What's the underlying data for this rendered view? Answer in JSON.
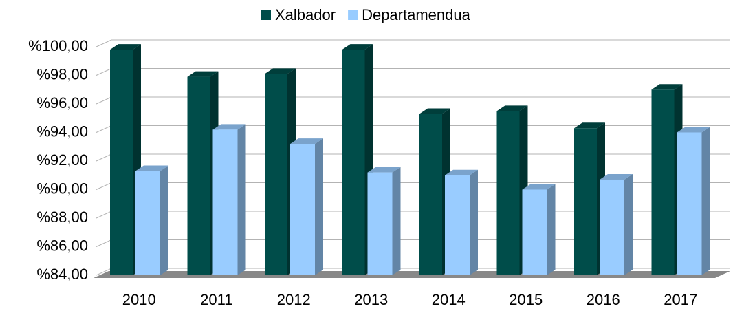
{
  "chart_data": {
    "type": "bar3d",
    "categories": [
      "2010",
      "2011",
      "2012",
      "2013",
      "2014",
      "2015",
      "2016",
      "2017"
    ],
    "series": [
      {
        "name": "Xalbador",
        "color": "#004d4a",
        "values": [
          99.8,
          97.9,
          98.1,
          99.8,
          95.3,
          95.5,
          94.3,
          97.0
        ]
      },
      {
        "name": "Departamendua",
        "color": "#99ccff",
        "values": [
          91.3,
          94.2,
          93.2,
          91.2,
          91.0,
          90.0,
          90.7,
          94.0
        ]
      }
    ],
    "ylim": [
      84,
      100
    ],
    "yticks": [
      {
        "value": 84,
        "label": "%84,00"
      },
      {
        "value": 86,
        "label": "%86,00"
      },
      {
        "value": 88,
        "label": "%88,00"
      },
      {
        "value": 90,
        "label": "%90,00"
      },
      {
        "value": 92,
        "label": "%92,00"
      },
      {
        "value": 94,
        "label": "%94,00"
      },
      {
        "value": 96,
        "label": "%96,00"
      },
      {
        "value": 98,
        "label": "%98,00"
      },
      {
        "value": 100,
        "label": "%100,00"
      }
    ],
    "grid": true,
    "legend": "top"
  }
}
